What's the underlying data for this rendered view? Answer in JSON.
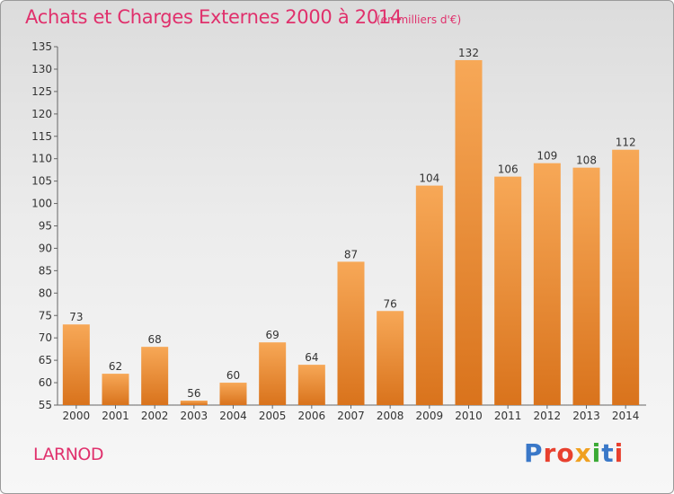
{
  "header": {
    "title": "Achats et Charges Externes 2000 à 2014",
    "subtitle": "(en milliers d'€)"
  },
  "footer": {
    "commune": "LARNOD",
    "logo_text": "Proxiti",
    "logo_colors": [
      "#3a78c8",
      "#e8402e",
      "#e8402e",
      "#f0a020",
      "#3aaa35",
      "#3a78c8",
      "#e8402e"
    ]
  },
  "chart_data": {
    "type": "bar",
    "title": "Achats et Charges Externes 2000 à 2014",
    "subtitle": "(en milliers d'€)",
    "categories": [
      "2000",
      "2001",
      "2002",
      "2003",
      "2004",
      "2005",
      "2006",
      "2007",
      "2008",
      "2009",
      "2010",
      "2011",
      "2012",
      "2013",
      "2014"
    ],
    "values": [
      73,
      62,
      68,
      56,
      60,
      69,
      64,
      87,
      76,
      104,
      132,
      106,
      109,
      108,
      112
    ],
    "ylim": [
      55,
      135
    ],
    "yticks": [
      55,
      60,
      65,
      70,
      75,
      80,
      85,
      90,
      95,
      100,
      105,
      110,
      115,
      120,
      125,
      130,
      135
    ],
    "grid": false,
    "legend": "none",
    "colors": {
      "bar_top": "#f7a857",
      "bar_bottom": "#d9731c",
      "axis": "#666666"
    }
  }
}
